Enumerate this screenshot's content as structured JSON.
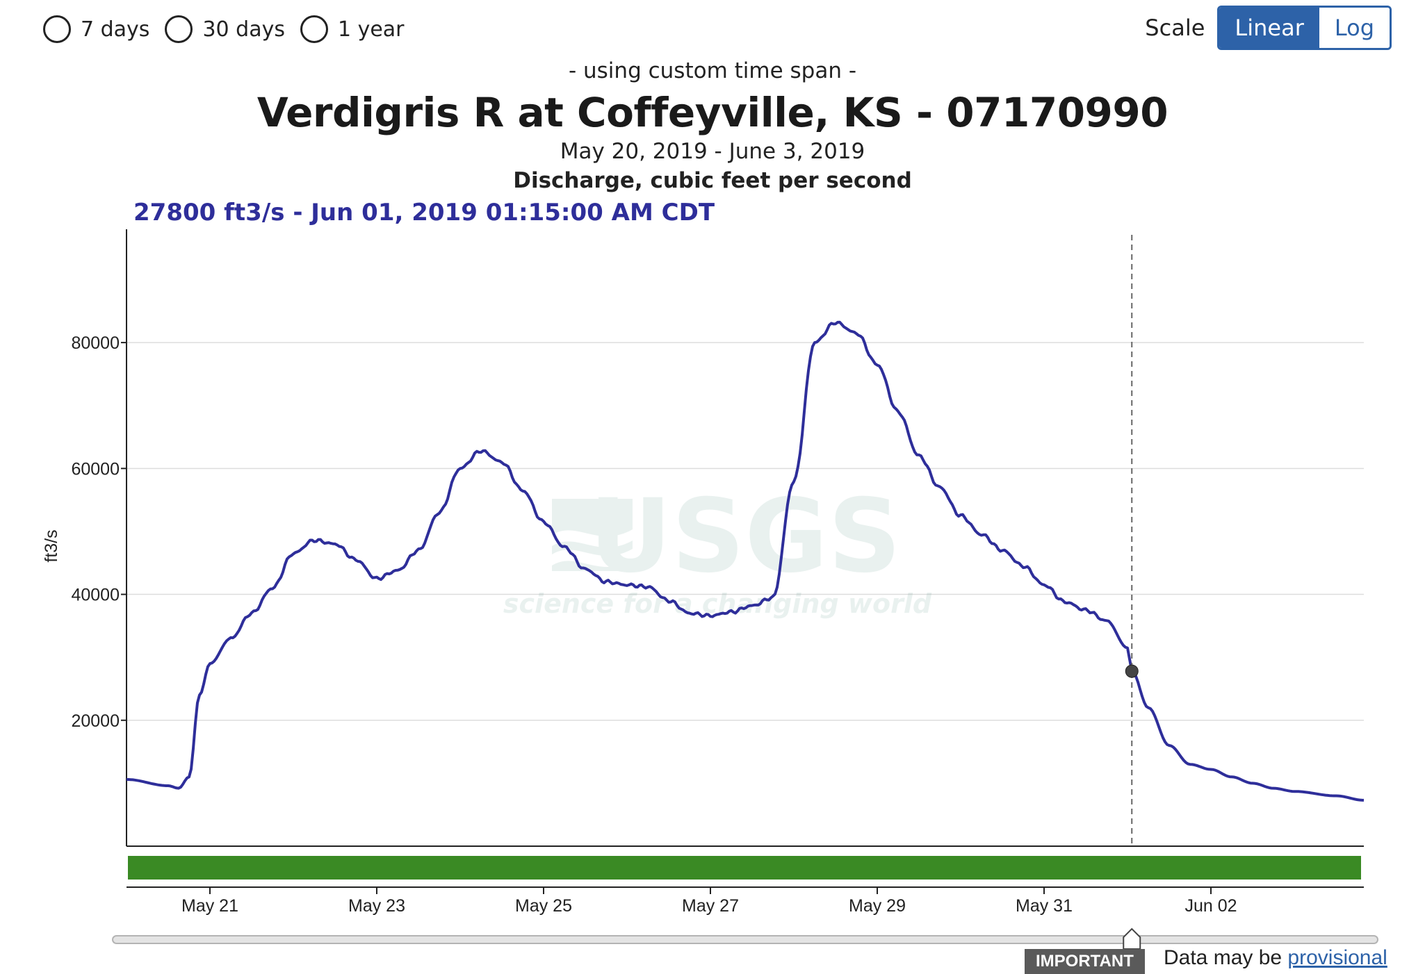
{
  "controls": {
    "ranges": [
      {
        "label": "7 days"
      },
      {
        "label": "30 days"
      },
      {
        "label": "1 year"
      }
    ],
    "scale_label": "Scale",
    "scale_options": [
      "Linear",
      "Log"
    ],
    "scale_selected": "Linear"
  },
  "header": {
    "subtitle": "- using custom time span -",
    "title": "Verdigris R at Coffeyville, KS - 07170990",
    "date_range": "May 20, 2019 - June 3, 2019",
    "parameter": "Discharge, cubic feet per second",
    "readout": "27800 ft3/s - Jun 01, 2019 01:15:00 AM CDT"
  },
  "watermark": {
    "logo_text": "USGS",
    "tagline": "science for a changing world"
  },
  "footer": {
    "badge": "IMPORTANT",
    "text": "Data may be ",
    "link": "provisional"
  },
  "colors": {
    "line": "#2e2e9a",
    "approval_bar": "#3a8a24",
    "accent": "#2d62a8",
    "grid": "#dddddd"
  },
  "chart_data": {
    "type": "line",
    "title": "Verdigris R at Coffeyville, KS - 07170990",
    "subtitle": "May 20, 2019 - June 3, 2019",
    "ylabel": "ft3/s",
    "xlabel": "",
    "x_domain": [
      "2019-05-20T00:00",
      "2019-06-03T20:00"
    ],
    "ylim": [
      0,
      98000
    ],
    "yticks": [
      20000,
      40000,
      60000,
      80000
    ],
    "xticks": [
      {
        "t": "2019-05-21T00:00",
        "label": "May 21"
      },
      {
        "t": "2019-05-23T00:00",
        "label": "May 23"
      },
      {
        "t": "2019-05-25T00:00",
        "label": "May 25"
      },
      {
        "t": "2019-05-27T00:00",
        "label": "May 27"
      },
      {
        "t": "2019-05-29T00:00",
        "label": "May 29"
      },
      {
        "t": "2019-05-31T00:00",
        "label": "May 31"
      },
      {
        "t": "2019-06-02T00:00",
        "label": "Jun 02"
      }
    ],
    "grid": true,
    "series": [
      {
        "points": [
          [
            "2019-05-20T00:00",
            10600
          ],
          [
            "2019-05-20T12:00",
            9600
          ],
          [
            "2019-05-20T15:00",
            9200
          ],
          [
            "2019-05-20T18:00",
            11000
          ],
          [
            "2019-05-20T21:00",
            24000
          ],
          [
            "2019-05-21T00:00",
            29000
          ],
          [
            "2019-05-21T06:00",
            33000
          ],
          [
            "2019-05-21T12:00",
            37000
          ],
          [
            "2019-05-21T18:00",
            41000
          ],
          [
            "2019-05-22T00:00",
            46500
          ],
          [
            "2019-05-22T06:00",
            48600
          ],
          [
            "2019-05-22T12:00",
            48000
          ],
          [
            "2019-05-22T18:00",
            45500
          ],
          [
            "2019-05-23T00:00",
            42500
          ],
          [
            "2019-05-23T06:00",
            43800
          ],
          [
            "2019-05-23T12:00",
            47000
          ],
          [
            "2019-05-23T18:00",
            53000
          ],
          [
            "2019-05-24T00:00",
            60000
          ],
          [
            "2019-05-24T06:00",
            62800
          ],
          [
            "2019-05-24T12:00",
            61000
          ],
          [
            "2019-05-24T18:00",
            56500
          ],
          [
            "2019-05-25T00:00",
            51500
          ],
          [
            "2019-05-25T06:00",
            47500
          ],
          [
            "2019-05-25T12:00",
            44000
          ],
          [
            "2019-05-25T18:00",
            42000
          ],
          [
            "2019-05-26T00:00",
            41500
          ],
          [
            "2019-05-26T06:00",
            41200
          ],
          [
            "2019-05-26T12:00",
            39000
          ],
          [
            "2019-05-26T18:00",
            37000
          ],
          [
            "2019-05-27T00:00",
            36600
          ],
          [
            "2019-05-27T06:00",
            37200
          ],
          [
            "2019-05-27T12:00",
            38200
          ],
          [
            "2019-05-27T18:00",
            39500
          ],
          [
            "2019-05-28T00:00",
            58000
          ],
          [
            "2019-05-28T06:00",
            80000
          ],
          [
            "2019-05-28T12:00",
            83200
          ],
          [
            "2019-05-28T18:00",
            81500
          ],
          [
            "2019-05-29T00:00",
            76500
          ],
          [
            "2019-05-29T06:00",
            69000
          ],
          [
            "2019-05-29T12:00",
            62000
          ],
          [
            "2019-05-29T18:00",
            57000
          ],
          [
            "2019-05-30T00:00",
            52500
          ],
          [
            "2019-05-30T06:00",
            49500
          ],
          [
            "2019-05-30T12:00",
            47000
          ],
          [
            "2019-05-30T18:00",
            44500
          ],
          [
            "2019-05-31T00:00",
            41500
          ],
          [
            "2019-05-31T06:00",
            38800
          ],
          [
            "2019-05-31T12:00",
            37500
          ],
          [
            "2019-05-31T18:00",
            35800
          ],
          [
            "2019-06-01T00:00",
            31500
          ],
          [
            "2019-06-01T01:15",
            27800
          ],
          [
            "2019-06-01T06:00",
            22000
          ],
          [
            "2019-06-01T12:00",
            16000
          ],
          [
            "2019-06-01T18:00",
            13000
          ],
          [
            "2019-06-02T00:00",
            12200
          ],
          [
            "2019-06-02T06:00",
            11000
          ],
          [
            "2019-06-02T12:00",
            10000
          ],
          [
            "2019-06-02T18:00",
            9200
          ],
          [
            "2019-06-03T00:00",
            8700
          ],
          [
            "2019-06-03T12:00",
            8000
          ],
          [
            "2019-06-03T20:00",
            7300
          ]
        ]
      }
    ],
    "highlight": {
      "t": "2019-06-01T01:15",
      "value": 27800
    }
  }
}
